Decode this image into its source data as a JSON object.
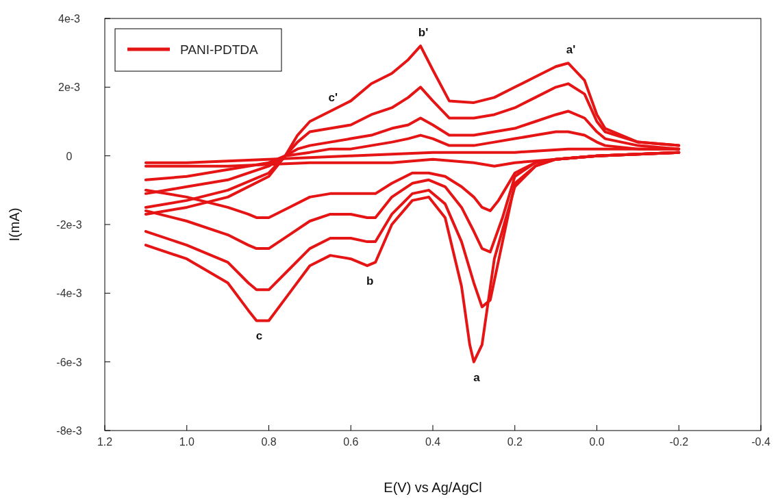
{
  "chart_data": {
    "type": "line",
    "xlabel": "E(V) vs Ag/AgCl",
    "ylabel": "I(mA)",
    "xlim": [
      1.2,
      -0.4
    ],
    "xticks": [
      {
        "value": 1.2,
        "label": "1.2"
      },
      {
        "value": 1.0,
        "label": "1.0"
      },
      {
        "value": 0.8,
        "label": "0.8"
      },
      {
        "value": 0.6,
        "label": "0.6"
      },
      {
        "value": 0.4,
        "label": "0.4"
      },
      {
        "value": 0.2,
        "label": "0.2"
      },
      {
        "value": 0,
        "label": "0.0"
      },
      {
        "value": -0.2,
        "label": "-0.2"
      },
      {
        "value": -0.4,
        "label": "-0.4"
      }
    ],
    "ylim": [
      -0.008,
      0.004
    ],
    "yticks": [
      {
        "value": -0.008,
        "label": "-8e-3"
      },
      {
        "value": -0.006,
        "label": "-6e-3"
      },
      {
        "value": -0.004,
        "label": "-4e-3"
      },
      {
        "value": -0.002,
        "label": "-2e-3"
      },
      {
        "value": 0,
        "label": "0"
      },
      {
        "value": 0.002,
        "label": "2e-3"
      },
      {
        "value": 0.004,
        "label": "4e-3"
      }
    ],
    "legend": "top left",
    "marker": "none",
    "line_style": "solid",
    "annotations": [
      {
        "text": "a",
        "x": 0.3,
        "y": -0.006
      },
      {
        "text": "b",
        "x": 0.56,
        "y": -0.0032
      },
      {
        "text": "c",
        "x": 0.83,
        "y": -0.0048
      },
      {
        "text": "a'",
        "x": 0.07,
        "y": 0.0027
      },
      {
        "text": "b'",
        "x": 0.43,
        "y": 0.0032
      },
      {
        "text": "c'",
        "x": 0.65,
        "y": 0.0013
      }
    ],
    "series": [
      {
        "name": "PANI-PDTDA",
        "color": "#e51515",
        "x": [
          1.1,
          1.0,
          0.9,
          0.85,
          0.83,
          0.8,
          0.75,
          0.7,
          0.65,
          0.6,
          0.56,
          0.54,
          0.5,
          0.45,
          0.41,
          0.37,
          0.33,
          0.31,
          0.3,
          0.28,
          0.25,
          0.2,
          0.15,
          0.1,
          0.0,
          -0.2
        ],
        "values": [
          -0.0026,
          -0.003,
          -0.0037,
          -0.0045,
          -0.0048,
          -0.0048,
          -0.004,
          -0.0032,
          -0.0029,
          -0.003,
          -0.0032,
          -0.0031,
          -0.002,
          -0.0013,
          -0.0012,
          -0.0018,
          -0.0038,
          -0.0055,
          -0.006,
          -0.0055,
          -0.003,
          -0.0009,
          -0.0003,
          -0.0001,
          0.0,
          0.0001
        ]
      },
      {
        "color": "#e51515",
        "x": [
          -0.2,
          -0.1,
          -0.02,
          0.0,
          0.03,
          0.07,
          0.1,
          0.15,
          0.2,
          0.25,
          0.3,
          0.36,
          0.4,
          0.43,
          0.46,
          0.5,
          0.55,
          0.6,
          0.65,
          0.7,
          0.73,
          0.76,
          0.8,
          0.9,
          1.0,
          1.1
        ],
        "values": [
          0.0003,
          0.0004,
          0.0008,
          0.0012,
          0.0022,
          0.0027,
          0.0026,
          0.0023,
          0.002,
          0.0017,
          0.00155,
          0.0016,
          0.0025,
          0.0032,
          0.0028,
          0.0024,
          0.0021,
          0.0016,
          0.0013,
          0.001,
          0.0006,
          0.0,
          -0.0006,
          -0.0012,
          -0.0015,
          -0.0017
        ]
      },
      {
        "color": "#e51515",
        "x": [
          1.1,
          1.0,
          0.9,
          0.85,
          0.83,
          0.8,
          0.75,
          0.7,
          0.65,
          0.6,
          0.56,
          0.54,
          0.5,
          0.45,
          0.41,
          0.37,
          0.33,
          0.3,
          0.28,
          0.26,
          0.23,
          0.2,
          0.15,
          0.1,
          0.0,
          -0.2
        ],
        "values": [
          -0.0022,
          -0.0026,
          -0.0031,
          -0.0037,
          -0.0039,
          -0.0039,
          -0.0033,
          -0.0027,
          -0.0024,
          -0.0024,
          -0.0025,
          -0.0025,
          -0.0017,
          -0.0011,
          -0.001,
          -0.0014,
          -0.0025,
          -0.0037,
          -0.0044,
          -0.0042,
          -0.0025,
          -0.0008,
          -0.0003,
          -0.0001,
          0.0,
          0.0001
        ]
      },
      {
        "color": "#e51515",
        "x": [
          -0.2,
          -0.1,
          -0.02,
          0.0,
          0.03,
          0.07,
          0.1,
          0.15,
          0.2,
          0.25,
          0.3,
          0.36,
          0.4,
          0.43,
          0.46,
          0.5,
          0.55,
          0.6,
          0.65,
          0.7,
          0.73,
          0.76,
          0.8,
          0.9,
          1.0,
          1.1
        ],
        "values": [
          0.0003,
          0.0004,
          0.0007,
          0.001,
          0.0018,
          0.0021,
          0.002,
          0.0017,
          0.0014,
          0.0012,
          0.0011,
          0.0011,
          0.0016,
          0.002,
          0.0017,
          0.0014,
          0.0012,
          0.0009,
          0.0008,
          0.0007,
          0.0004,
          0.0,
          -0.0005,
          -0.001,
          -0.0013,
          -0.0015
        ]
      },
      {
        "color": "#e51515",
        "x": [
          1.1,
          1.0,
          0.9,
          0.85,
          0.83,
          0.8,
          0.75,
          0.7,
          0.65,
          0.6,
          0.56,
          0.54,
          0.5,
          0.45,
          0.41,
          0.37,
          0.33,
          0.3,
          0.28,
          0.26,
          0.23,
          0.2,
          0.15,
          0.1,
          0.0,
          -0.2
        ],
        "values": [
          -0.0016,
          -0.0019,
          -0.0023,
          -0.0026,
          -0.0027,
          -0.0027,
          -0.0023,
          -0.0019,
          -0.0017,
          -0.0017,
          -0.0018,
          -0.0018,
          -0.0012,
          -0.0008,
          -0.0007,
          -0.0009,
          -0.0015,
          -0.0022,
          -0.0027,
          -0.0028,
          -0.0018,
          -0.0006,
          -0.0002,
          -0.0001,
          0.0,
          0.0001
        ]
      },
      {
        "color": "#e51515",
        "x": [
          -0.2,
          -0.1,
          -0.02,
          0.0,
          0.03,
          0.07,
          0.1,
          0.15,
          0.2,
          0.25,
          0.3,
          0.36,
          0.4,
          0.43,
          0.46,
          0.5,
          0.55,
          0.6,
          0.65,
          0.7,
          0.73,
          0.76,
          0.8,
          0.9,
          1.0,
          1.1
        ],
        "values": [
          0.0002,
          0.0003,
          0.0005,
          0.0007,
          0.0011,
          0.0013,
          0.0012,
          0.001,
          0.0008,
          0.0007,
          0.0006,
          0.0006,
          0.0009,
          0.0011,
          0.0009,
          0.0008,
          0.0006,
          0.0005,
          0.0004,
          0.0003,
          0.0002,
          0.0,
          -0.0003,
          -0.0007,
          -0.0009,
          -0.0011
        ]
      },
      {
        "color": "#e51515",
        "x": [
          1.1,
          1.0,
          0.9,
          0.85,
          0.83,
          0.8,
          0.75,
          0.7,
          0.65,
          0.6,
          0.56,
          0.54,
          0.5,
          0.45,
          0.41,
          0.37,
          0.33,
          0.3,
          0.28,
          0.26,
          0.24,
          0.2,
          0.15,
          0.1,
          0.0,
          -0.2
        ],
        "values": [
          -0.001,
          -0.0012,
          -0.0015,
          -0.0017,
          -0.0018,
          -0.0018,
          -0.0015,
          -0.0012,
          -0.0011,
          -0.0011,
          -0.0011,
          -0.0011,
          -0.0008,
          -0.0005,
          -0.0005,
          -0.0006,
          -0.0009,
          -0.0012,
          -0.0015,
          -0.0016,
          -0.0013,
          -0.0005,
          -0.0002,
          -0.0001,
          0.0,
          0.0001
        ]
      },
      {
        "color": "#e51515",
        "x": [
          -0.2,
          -0.1,
          -0.02,
          0.0,
          0.03,
          0.07,
          0.1,
          0.15,
          0.2,
          0.25,
          0.3,
          0.36,
          0.4,
          0.43,
          0.46,
          0.5,
          0.55,
          0.6,
          0.65,
          0.7,
          0.76,
          0.8,
          0.9,
          1.0,
          1.1
        ],
        "values": [
          0.0002,
          0.0002,
          0.0003,
          0.0004,
          0.0006,
          0.0007,
          0.0007,
          0.0006,
          0.0005,
          0.0004,
          0.0003,
          0.0003,
          0.0005,
          0.0006,
          0.0005,
          0.0004,
          0.0003,
          0.0002,
          0.0002,
          0.0001,
          0.0,
          -0.0002,
          -0.0004,
          -0.0006,
          -0.0007
        ]
      },
      {
        "color": "#e51515",
        "x": [
          1.1,
          0.9,
          0.7,
          0.5,
          0.4,
          0.3,
          0.25,
          0.2,
          0.1,
          0.0,
          -0.2
        ],
        "values": [
          -0.0003,
          -0.0003,
          -0.0002,
          -0.0002,
          -0.0001,
          -0.0002,
          -0.0003,
          -0.0002,
          -0.0001,
          0.0,
          0.0001
        ]
      },
      {
        "color": "#e51515",
        "x": [
          -0.2,
          0.0,
          0.07,
          0.2,
          0.4,
          0.6,
          0.8,
          1.0,
          1.1
        ],
        "values": [
          0.0002,
          0.0002,
          0.0002,
          0.0001,
          0.0001,
          0.0,
          -0.0001,
          -0.0002,
          -0.0002
        ]
      }
    ]
  }
}
